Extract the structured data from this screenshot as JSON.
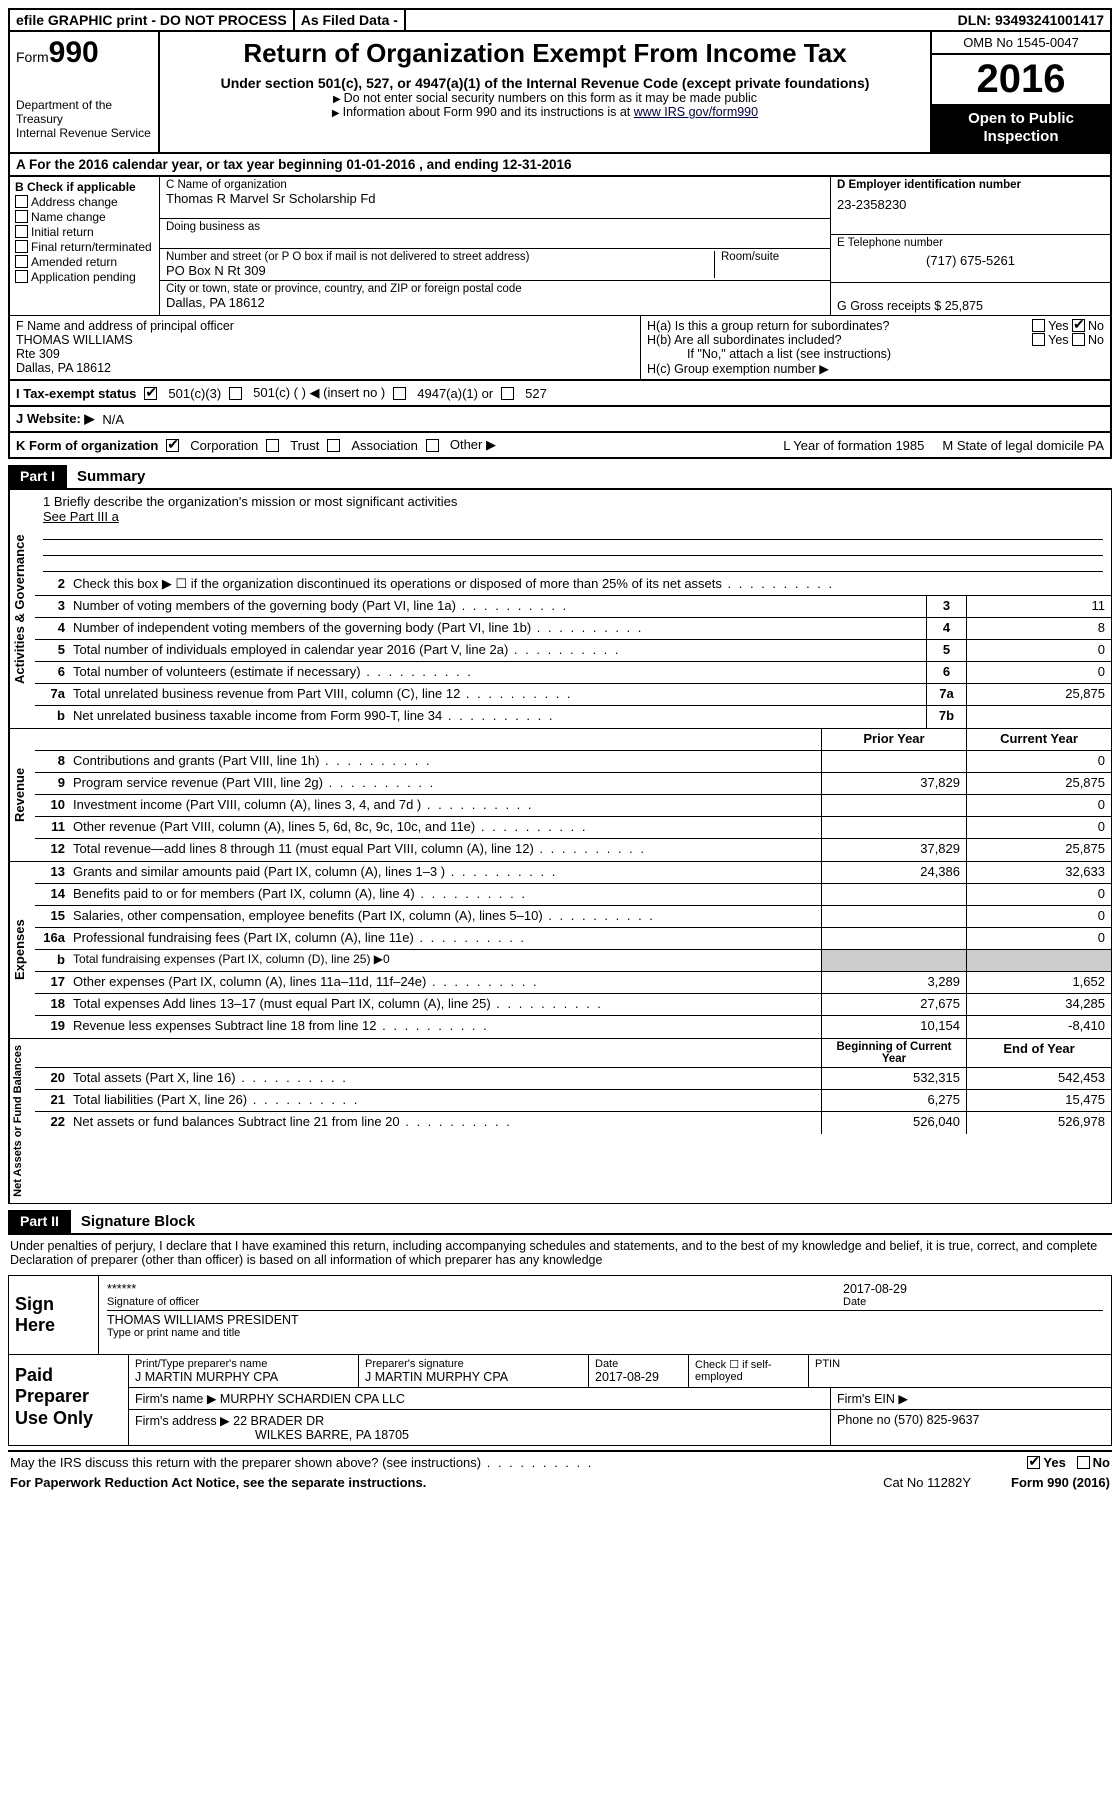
{
  "topbar": {
    "efile": "efile GRAPHIC print - DO NOT PROCESS",
    "asfiled": "As Filed Data -",
    "dln": "DLN: 93493241001417"
  },
  "header": {
    "form_label": "Form",
    "form_no": "990",
    "dept1": "Department of the Treasury",
    "dept2": "Internal Revenue Service",
    "title": "Return of Organization Exempt From Income Tax",
    "subtitle": "Under section 501(c), 527, or 4947(a)(1) of the Internal Revenue Code (except private foundations)",
    "note1": "Do not enter social security numbers on this form as it may be made public",
    "note2_pre": "Information about Form 990 and its instructions is at ",
    "note2_link": "www IRS gov/form990",
    "omb": "OMB No 1545-0047",
    "year": "2016",
    "otp": "Open to Public Inspection"
  },
  "rowA": "A  For the 2016 calendar year, or tax year beginning 01-01-2016   , and ending 12-31-2016",
  "B": {
    "title": "B Check if applicable",
    "opts": [
      "Address change",
      "Name change",
      "Initial return",
      "Final return/terminated",
      "Amended return",
      "Application pending"
    ]
  },
  "C": {
    "label": "C Name of organization",
    "name": "Thomas R Marvel Sr Scholarship Fd",
    "dba_label": "Doing business as",
    "addr_label": "Number and street (or P O  box if mail is not delivered to street address)",
    "room_label": "Room/suite",
    "addr": "PO Box N Rt 309",
    "city_label": "City or town, state or province, country, and ZIP or foreign postal code",
    "city": "Dallas, PA  18612"
  },
  "D": {
    "label": "D Employer identification number",
    "value": "23-2358230"
  },
  "E": {
    "label": "E Telephone number",
    "value": "(717) 675-5261"
  },
  "G": {
    "label": "G Gross receipts $",
    "value": "25,875"
  },
  "F": {
    "label": "F  Name and address of principal officer",
    "name": "THOMAS WILLIAMS",
    "addr1": "Rte 309",
    "addr2": "Dallas, PA  18612"
  },
  "H": {
    "a": "H(a)  Is this a group return for subordinates?",
    "b": "H(b)  Are all subordinates included?",
    "ifno": "If \"No,\" attach a list  (see instructions)",
    "c": "H(c)  Group exemption number ▶",
    "yes": "Yes",
    "no": "No"
  },
  "I": {
    "label": "I  Tax-exempt status",
    "o1": "501(c)(3)",
    "o2": "501(c) (   ) ◀ (insert no )",
    "o3": "4947(a)(1) or",
    "o4": "527"
  },
  "J": {
    "label": "J  Website: ▶",
    "value": "N/A"
  },
  "K": {
    "label": "K Form of organization",
    "o1": "Corporation",
    "o2": "Trust",
    "o3": "Association",
    "o4": "Other ▶"
  },
  "L": {
    "label": "L Year of formation  1985"
  },
  "M": {
    "label": "M State of legal domicile  PA"
  },
  "partI": {
    "tag": "Part I",
    "title": "Summary"
  },
  "mission": {
    "q": "1 Briefly describe the organization's mission or most significant activities",
    "a": "See Part III a"
  },
  "lines_top": [
    {
      "n": "2",
      "t": "Check this box ▶ ☐  if the organization discontinued its operations or disposed of more than 25% of its net assets"
    },
    {
      "n": "3",
      "t": "Number of voting members of the governing body (Part VI, line 1a)",
      "box": "3",
      "v": "11"
    },
    {
      "n": "4",
      "t": "Number of independent voting members of the governing body (Part VI, line 1b)",
      "box": "4",
      "v": "8"
    },
    {
      "n": "5",
      "t": "Total number of individuals employed in calendar year 2016 (Part V, line 2a)",
      "box": "5",
      "v": "0"
    },
    {
      "n": "6",
      "t": "Total number of volunteers (estimate if necessary)",
      "box": "6",
      "v": "0"
    },
    {
      "n": "7a",
      "t": "Total unrelated business revenue from Part VIII, column (C), line 12",
      "box": "7a",
      "v": "25,875"
    },
    {
      "n": "b",
      "t": "Net unrelated business taxable income from Form 990-T, line 34",
      "box": "7b",
      "v": ""
    }
  ],
  "col_headers": {
    "c1": "Prior Year",
    "c2": "Current Year"
  },
  "revenue": [
    {
      "n": "8",
      "t": "Contributions and grants (Part VIII, line 1h)",
      "c1": "",
      "c2": "0"
    },
    {
      "n": "9",
      "t": "Program service revenue (Part VIII, line 2g)",
      "c1": "37,829",
      "c2": "25,875"
    },
    {
      "n": "10",
      "t": "Investment income (Part VIII, column (A), lines 3, 4, and 7d )",
      "c1": "",
      "c2": "0"
    },
    {
      "n": "11",
      "t": "Other revenue (Part VIII, column (A), lines 5, 6d, 8c, 9c, 10c, and 11e)",
      "c1": "",
      "c2": "0"
    },
    {
      "n": "12",
      "t": "Total revenue—add lines 8 through 11 (must equal Part VIII, column (A), line 12)",
      "c1": "37,829",
      "c2": "25,875"
    }
  ],
  "expenses": [
    {
      "n": "13",
      "t": "Grants and similar amounts paid (Part IX, column (A), lines 1–3 )",
      "c1": "24,386",
      "c2": "32,633"
    },
    {
      "n": "14",
      "t": "Benefits paid to or for members (Part IX, column (A), line 4)",
      "c1": "",
      "c2": "0"
    },
    {
      "n": "15",
      "t": "Salaries, other compensation, employee benefits (Part IX, column (A), lines 5–10)",
      "c1": "",
      "c2": "0"
    },
    {
      "n": "16a",
      "t": "Professional fundraising fees (Part IX, column (A), line 11e)",
      "c1": "",
      "c2": "0"
    },
    {
      "n": "b",
      "t": "Total fundraising expenses (Part IX, column (D), line 25) ▶0",
      "shade": true
    },
    {
      "n": "17",
      "t": "Other expenses (Part IX, column (A), lines 11a–11d, 11f–24e)",
      "c1": "3,289",
      "c2": "1,652"
    },
    {
      "n": "18",
      "t": "Total expenses  Add lines 13–17 (must equal Part IX, column (A), line 25)",
      "c1": "27,675",
      "c2": "34,285"
    },
    {
      "n": "19",
      "t": "Revenue less expenses  Subtract line 18 from line 12",
      "c1": "10,154",
      "c2": "-8,410"
    }
  ],
  "na_headers": {
    "c1": "Beginning of Current Year",
    "c2": "End of Year"
  },
  "netassets": [
    {
      "n": "20",
      "t": "Total assets (Part X, line 16)",
      "c1": "532,315",
      "c2": "542,453"
    },
    {
      "n": "21",
      "t": "Total liabilities (Part X, line 26)",
      "c1": "6,275",
      "c2": "15,475"
    },
    {
      "n": "22",
      "t": "Net assets or fund balances  Subtract line 21 from line 20",
      "c1": "526,040",
      "c2": "526,978"
    }
  ],
  "vlabels": {
    "ag": "Activities & Governance",
    "rev": "Revenue",
    "exp": "Expenses",
    "na": "Net Assets or Fund Balances"
  },
  "partII": {
    "tag": "Part II",
    "title": "Signature Block"
  },
  "perjury": "Under penalties of perjury, I declare that I have examined this return, including accompanying schedules and statements, and to the best of my knowledge and belief, it is true, correct, and complete  Declaration of preparer (other than officer) is based on all information of which preparer has any knowledge",
  "sign": {
    "label": "Sign Here",
    "stars": "******",
    "sig_of": "Signature of officer",
    "date": "2017-08-29",
    "name": "THOMAS WILLIAMS PRESIDENT",
    "type": "Type or print name and title"
  },
  "paid": {
    "label": "Paid Preparer Use Only",
    "p1a": "Print/Type preparer's name",
    "p1av": "J MARTIN MURPHY CPA",
    "p1b": "Preparer's signature",
    "p1bv": "J MARTIN MURPHY CPA",
    "p1c": "Date",
    "p1cv": "2017-08-29",
    "p1d": "Check ☐ if self-employed",
    "p1e": "PTIN",
    "p2a": "Firm's name    ▶ MURPHY SCHARDIEN CPA LLC",
    "p2b": "Firm's EIN ▶",
    "p3a": "Firm's address ▶ 22 BRADER DR",
    "p3a2": "WILKES BARRE, PA  18705",
    "p3b": "Phone no  (570) 825-9637"
  },
  "discuss": "May the IRS discuss this return with the preparer shown above? (see instructions)",
  "yes": "Yes",
  "no": "No",
  "foot2a": "For Paperwork Reduction Act Notice, see the separate instructions.",
  "foot2b": "Cat  No  11282Y",
  "foot2c": "Form 990 (2016)"
}
